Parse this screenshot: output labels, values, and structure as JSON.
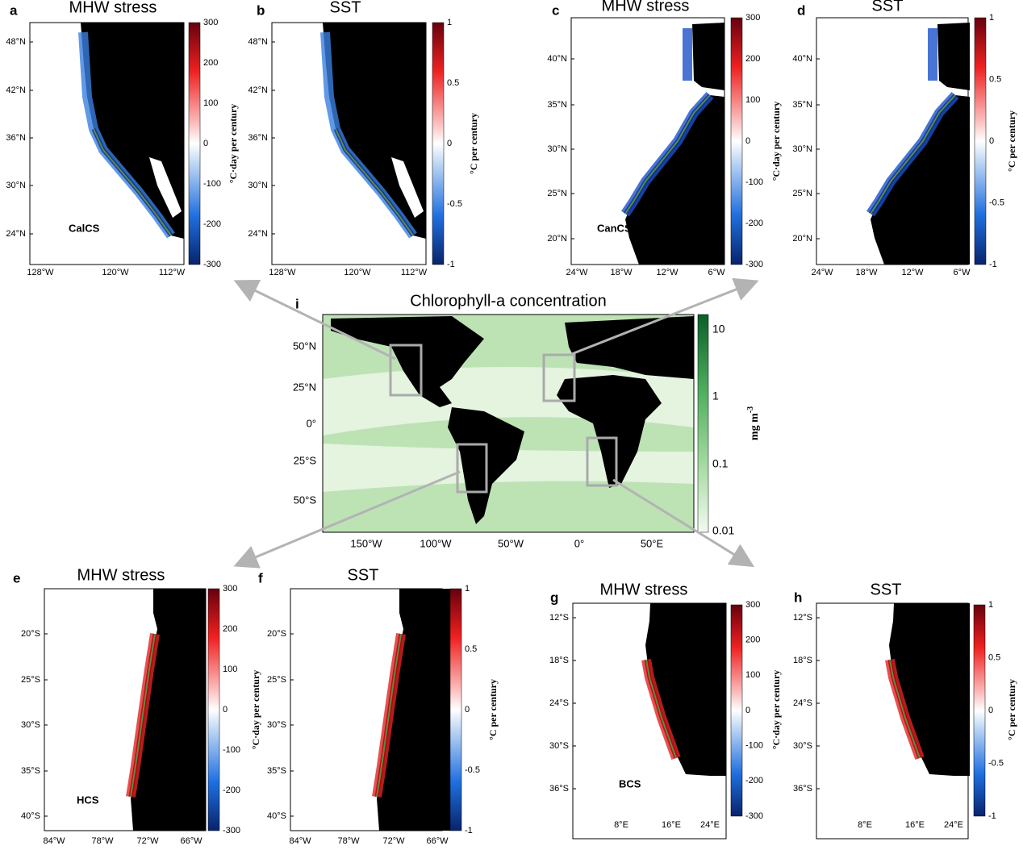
{
  "panels": [
    {
      "letter": "a",
      "title": "MHW stress",
      "lat_labels": [
        "48°N",
        "42°N",
        "36°N",
        "30°N",
        "24°N"
      ],
      "lon_labels": [
        "128°W",
        "120°W",
        "112°W"
      ],
      "colorbar_ticks": [
        "300",
        "200",
        "100",
        "0",
        "-100",
        "-200",
        "-300"
      ],
      "colorbar_label": "°C·day per century",
      "region": "CalCS"
    },
    {
      "letter": "b",
      "title": "SST",
      "lat_labels": [
        "48°N",
        "42°N",
        "36°N",
        "30°N",
        "24°N"
      ],
      "lon_labels": [
        "128°W",
        "120°W",
        "112°W"
      ],
      "colorbar_ticks": [
        "1",
        "0.5",
        "0",
        "-0.5",
        "-1"
      ],
      "colorbar_label": "°C per century"
    },
    {
      "letter": "c",
      "title": "MHW stress",
      "lat_labels": [
        "40°N",
        "35°N",
        "30°N",
        "25°N",
        "20°N"
      ],
      "lon_labels": [
        "24°W",
        "18°W",
        "12°W",
        "6°W"
      ],
      "colorbar_ticks": [
        "300",
        "200",
        "100",
        "0",
        "-100",
        "-200",
        "-300"
      ],
      "colorbar_label": "°C·day per century",
      "region": "CanCS"
    },
    {
      "letter": "d",
      "title": "SST",
      "lat_labels": [
        "40°N",
        "35°N",
        "30°N",
        "25°N",
        "20°N"
      ],
      "lon_labels": [
        "24°W",
        "18°W",
        "12°W",
        "6°W"
      ],
      "colorbar_ticks": [
        "1",
        "0.5",
        "0",
        "-0.5",
        "-1"
      ],
      "colorbar_label": "°C per century"
    },
    {
      "letter": "e",
      "title": "MHW stress",
      "lat_labels": [
        "20°S",
        "25°S",
        "30°S",
        "35°S",
        "40°S"
      ],
      "lon_labels": [
        "84°W",
        "78°W",
        "72°W",
        "66°W"
      ],
      "colorbar_ticks": [
        "300",
        "200",
        "100",
        "0",
        "-100",
        "-200",
        "-300"
      ],
      "colorbar_label": "°C·day per century",
      "region": "HCS"
    },
    {
      "letter": "f",
      "title": "SST",
      "lat_labels": [
        "20°S",
        "25°S",
        "30°S",
        "35°S",
        "40°S"
      ],
      "lon_labels": [
        "84°W",
        "78°W",
        "72°W",
        "66°W"
      ],
      "colorbar_ticks": [
        "1",
        "0.5",
        "0",
        "-0.5",
        "-1"
      ],
      "colorbar_label": "°C per century"
    },
    {
      "letter": "g",
      "title": "MHW stress",
      "lat_labels": [
        "12°S",
        "18°S",
        "24°S",
        "30°S",
        "36°S"
      ],
      "lon_labels": [
        "8°E",
        "16°E",
        "24°E"
      ],
      "colorbar_ticks": [
        "300",
        "200",
        "100",
        "0",
        "-100",
        "-200",
        "-300"
      ],
      "colorbar_label": "°C·day per century",
      "region": "BCS"
    },
    {
      "letter": "h",
      "title": "SST",
      "lat_labels": [
        "12°S",
        "18°S",
        "24°S",
        "30°S",
        "36°S"
      ],
      "lon_labels": [
        "8°E",
        "16°E",
        "24°E"
      ],
      "colorbar_ticks": [
        "1",
        "0.5",
        "0",
        "-0.5",
        "-1"
      ],
      "colorbar_label": "°C per century"
    }
  ],
  "center": {
    "letter": "i",
    "title": "Chlorophyll-a concentration",
    "lat_labels": [
      "50°N",
      "25°N",
      "0°",
      "25°S",
      "50°S"
    ],
    "lon_labels": [
      "150°W",
      "100°W",
      "50°W",
      "0°",
      "50°E"
    ],
    "colorbar_ticks": [
      "10",
      "1",
      "0.1",
      "0.01"
    ],
    "colorbar_label": "mg m",
    "colorbar_label_sup": "-3"
  }
}
